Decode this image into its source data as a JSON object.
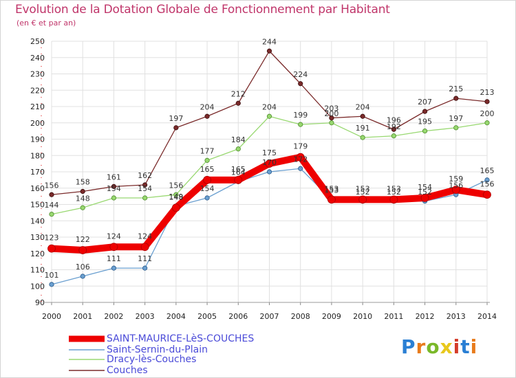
{
  "header": {
    "title": "Evolution de la Dotation Globale de Fonctionnement par Habitant",
    "subtitle": "(en € et par an)"
  },
  "logo": {
    "text": "Proxiti",
    "letters": [
      "P",
      "r",
      "o",
      "x",
      "i",
      "t",
      "i"
    ],
    "colors": [
      "#2a7fd4",
      "#e87b1c",
      "#7ab829",
      "#e8c81c",
      "#d43c2a",
      "#2a7fd4",
      "#e87b1c"
    ]
  },
  "chart_data": {
    "type": "line",
    "title": "Evolution de la Dotation Globale de Fonctionnement par Habitant",
    "subtitle": "(en € et par an)",
    "xlabel": "",
    "ylabel": "",
    "ylim": [
      90,
      250
    ],
    "ystep": 10,
    "grid": true,
    "categories": [
      "2000",
      "2001",
      "2002",
      "2003",
      "2004",
      "2005",
      "2006",
      "2007",
      "2008",
      "2009",
      "2010",
      "2011",
      "2012",
      "2013",
      "2014"
    ],
    "series": [
      {
        "name": "SAINT-MAURICE-LèS-COUCHES",
        "color": "#ee0000",
        "width": 10,
        "values": [
          123,
          122,
          124,
          124,
          148,
          165,
          165,
          175,
          179,
          153,
          153,
          153,
          154,
          159,
          156
        ]
      },
      {
        "name": "Saint-Sernin-du-Plain",
        "color": "#6a9fd0",
        "width": 1.3,
        "values": [
          101,
          106,
          111,
          111,
          149,
          154,
          164,
          170,
          172,
          153,
          152,
          152,
          152,
          156,
          165
        ]
      },
      {
        "name": "Dracy-lès-Couches",
        "color": "#98d870",
        "width": 1.3,
        "values": [
          144,
          148,
          154,
          154,
          156,
          177,
          184,
          204,
          199,
          200,
          191,
          192,
          195,
          197,
          200
        ]
      },
      {
        "name": "Couches",
        "color": "#7a2a2a",
        "width": 1.3,
        "values": [
          156,
          158,
          161,
          162,
          197,
          204,
          212,
          244,
          224,
          203,
          204,
          196,
          207,
          215,
          213
        ]
      }
    ],
    "legend": {
      "position": "bottom-left"
    }
  }
}
